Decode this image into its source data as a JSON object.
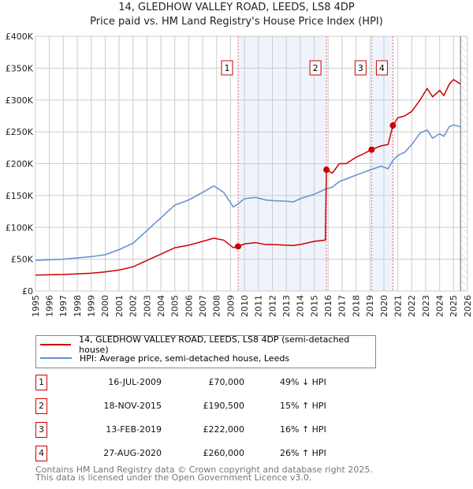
{
  "chart_data": {
    "type": "line",
    "title": "14, GLEDHOW VALLEY ROAD, LEEDS, LS8 4DP",
    "subtitle": "Price paid vs. HM Land Registry's House Price Index (HPI)",
    "xlim": [
      1995,
      2026
    ],
    "ylim": [
      0,
      400000
    ],
    "yticks": [
      {
        "v": 0,
        "l": "£0"
      },
      {
        "v": 50000,
        "l": "£50K"
      },
      {
        "v": 100000,
        "l": "£100K"
      },
      {
        "v": 150000,
        "l": "£150K"
      },
      {
        "v": 200000,
        "l": "£200K"
      },
      {
        "v": 250000,
        "l": "£250K"
      },
      {
        "v": 300000,
        "l": "£300K"
      },
      {
        "v": 350000,
        "l": "£350K"
      },
      {
        "v": 400000,
        "l": "£400K"
      }
    ],
    "xticks": [
      "1995",
      "1996",
      "1997",
      "1998",
      "1999",
      "2000",
      "2001",
      "2002",
      "2003",
      "2004",
      "2005",
      "2006",
      "2007",
      "2008",
      "2009",
      "2010",
      "2011",
      "2012",
      "2013",
      "2014",
      "2015",
      "2016",
      "2017",
      "2018",
      "2019",
      "2020",
      "2021",
      "2022",
      "2023",
      "2024",
      "2025",
      "2026"
    ],
    "grid": true,
    "data_end": 2025.5,
    "shaded_ranges": [
      [
        2009.54,
        2015.88
      ],
      [
        2019.12,
        2020.65
      ]
    ],
    "series": [
      {
        "name": "14, GLEDHOW VALLEY ROAD, LEEDS, LS8 4DP (semi-detached house)",
        "color": "#cc0000",
        "x": [
          1995,
          1996,
          1997,
          1998,
          1999,
          2000,
          2001,
          2002,
          2003,
          2004,
          2005,
          2006,
          2007,
          2007.8,
          2008.5,
          2009.2,
          2009.54,
          2010,
          2010.8,
          2011.5,
          2012,
          2013,
          2013.5,
          2014,
          2015,
          2015.8,
          2015.88,
          2016.3,
          2016.8,
          2017.3,
          2018,
          2018.5,
          2019.12,
          2019.8,
          2020.3,
          2020.65,
          2021,
          2021.5,
          2022,
          2022.6,
          2023.1,
          2023.5,
          2024,
          2024.3,
          2024.7,
          2025,
          2025.5
        ],
        "y": [
          25000,
          25500,
          26000,
          27000,
          28000,
          30000,
          33000,
          38000,
          48000,
          58000,
          68000,
          72000,
          78000,
          83000,
          80000,
          68000,
          70000,
          74000,
          76000,
          73000,
          73000,
          72000,
          71500,
          73000,
          78000,
          80000,
          190500,
          185000,
          200000,
          200000,
          210000,
          215000,
          222000,
          228000,
          230000,
          260000,
          272000,
          275000,
          282000,
          300000,
          318000,
          305000,
          315000,
          307000,
          325000,
          332000,
          325000
        ]
      },
      {
        "name": "HPI: Average price, semi-detached house, Leeds",
        "color": "#6090d0",
        "x": [
          1995,
          1996,
          1997,
          1998,
          1999,
          2000,
          2001,
          2002,
          2003,
          2004,
          2005,
          2006,
          2007,
          2007.8,
          2008.5,
          2009.2,
          2009.54,
          2010,
          2010.8,
          2011.5,
          2012,
          2013,
          2013.5,
          2014,
          2015,
          2015.8,
          2016.3,
          2016.8,
          2017.3,
          2018,
          2018.5,
          2019.12,
          2019.8,
          2020.3,
          2020.65,
          2021,
          2021.5,
          2022,
          2022.6,
          2023.1,
          2023.5,
          2024,
          2024.3,
          2024.7,
          2025,
          2025.5
        ],
        "y": [
          48000,
          49000,
          50000,
          52000,
          54000,
          57000,
          65000,
          75000,
          95000,
          115000,
          135000,
          143000,
          155000,
          165000,
          155000,
          132000,
          137000,
          145000,
          147000,
          143000,
          142000,
          141000,
          140000,
          145000,
          152000,
          160000,
          163000,
          172000,
          176000,
          182000,
          186000,
          191000,
          196000,
          192000,
          205000,
          213000,
          218000,
          230000,
          248000,
          253000,
          240000,
          247000,
          243000,
          258000,
          261000,
          258000
        ]
      }
    ],
    "sales": [
      {
        "n": "1",
        "x": 2009.54,
        "y": 70000,
        "date": "16-JUL-2009",
        "price": "£70,000",
        "hpi": "49% ↓ HPI"
      },
      {
        "n": "2",
        "x": 2015.88,
        "y": 190500,
        "date": "18-NOV-2015",
        "price": "£190,500",
        "hpi": "15% ↑ HPI"
      },
      {
        "n": "3",
        "x": 2019.12,
        "y": 222000,
        "date": "13-FEB-2019",
        "price": "£222,000",
        "hpi": "16% ↑ HPI"
      },
      {
        "n": "4",
        "x": 2020.65,
        "y": 260000,
        "date": "27-AUG-2020",
        "price": "£260,000",
        "hpi": "26% ↑ HPI"
      }
    ]
  },
  "footer": [
    "Contains HM Land Registry data © Crown copyright and database right 2025.",
    "This data is licensed under the Open Government Licence v3.0."
  ]
}
